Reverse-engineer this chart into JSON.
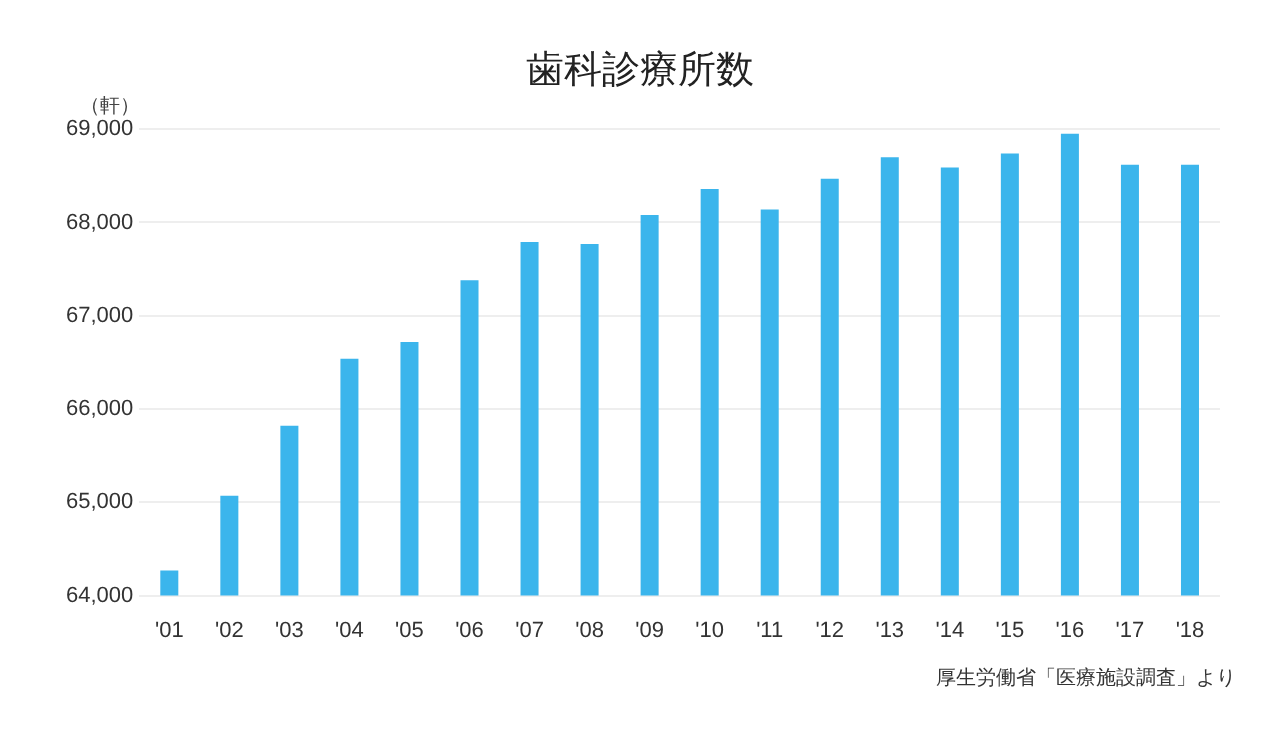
{
  "chart_data": {
    "type": "bar",
    "title": "歯科診療所数",
    "ylabel": "（軒）",
    "categories": [
      "'01",
      "'02",
      "'03",
      "'04",
      "'05",
      "'06",
      "'07",
      "'08",
      "'09",
      "'10",
      "'11",
      "'12",
      "'13",
      "'14",
      "'15",
      "'16",
      "'17",
      "'18"
    ],
    "values": [
      64270,
      65070,
      65820,
      66540,
      66720,
      67380,
      67790,
      67770,
      68080,
      68360,
      68140,
      68470,
      68700,
      68590,
      68740,
      68950,
      68620,
      68620
    ],
    "color": "#3bb5ec",
    "ylim": [
      64000,
      69000
    ],
    "yticks": [
      {
        "value": 64000,
        "label": "64,000"
      },
      {
        "value": 65000,
        "label": "65,000"
      },
      {
        "value": 66000,
        "label": "66,000"
      },
      {
        "value": 67000,
        "label": "67,000"
      },
      {
        "value": 68000,
        "label": "68,000"
      },
      {
        "value": 69000,
        "label": "69,000"
      }
    ],
    "grid": "y",
    "annotations": [
      "厚生労働省「医療施設調査」より"
    ]
  }
}
